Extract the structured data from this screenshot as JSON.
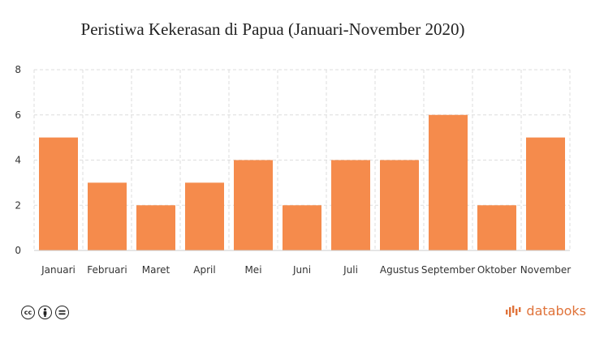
{
  "chart_data": {
    "type": "bar",
    "title": "Peristiwa Kekerasan di Papua (Januari-November 2020)",
    "categories": [
      "Januari",
      "Februari",
      "Maret",
      "April",
      "Mei",
      "Juni",
      "Juli",
      "Agustus",
      "September",
      "Oktober",
      "November"
    ],
    "values": [
      5,
      3,
      2,
      3,
      4,
      2,
      4,
      4,
      6,
      2,
      5
    ],
    "ylim": [
      0,
      8
    ],
    "yticks": [
      0,
      2,
      4,
      6,
      8
    ],
    "grid": true,
    "bar_color": "#f58b4c"
  },
  "footer": {
    "license_icons": [
      "cc-icon",
      "by-icon",
      "nd-icon"
    ],
    "brand": "databoks",
    "brand_color": "#e0733a"
  }
}
